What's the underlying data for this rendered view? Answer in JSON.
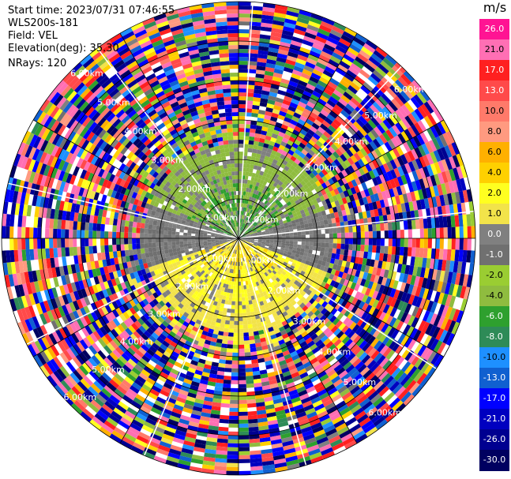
{
  "header": {
    "start_time": "Start time: 2023/07/31 07:46:55",
    "instrument": "WLS200s-181",
    "field": "Field: VEL",
    "elevation": "Elevation(deg): 35.30",
    "nrays": "NRays: 120"
  },
  "colorbar": {
    "unit": "m/s",
    "ticks": [
      "26.0",
      "21.0",
      "17.0",
      "13.0",
      "10.0",
      "8.0",
      "6.0",
      "4.0",
      "2.0",
      "1.0",
      "0.0",
      "-1.0",
      "-2.0",
      "-4.0",
      "-6.0",
      "-8.0",
      "-10.0",
      "-13.0",
      "-17.0",
      "-21.0",
      "-26.0",
      "-30.0"
    ],
    "colors": [
      "#ff1493",
      "#ff6fb4",
      "#ff2020",
      "#ff4a4a",
      "#ff7a6a",
      "#ff9a80",
      "#ffb000",
      "#ffd000",
      "#ffff20",
      "#f2e34a",
      "#808080",
      "#707070",
      "#9acd32",
      "#8fbc3f",
      "#2ea02e",
      "#2e8b57",
      "#1e90ff",
      "#1060d0",
      "#0000ff",
      "#0000c0",
      "#000090",
      "#000060"
    ]
  },
  "chart_data": {
    "type": "ppi",
    "field": "VEL",
    "units": "m/s",
    "nrays": 120,
    "elevation_deg": 35.3,
    "range_rings_km": [
      1.0,
      2.0,
      3.0,
      4.0,
      5.0,
      6.0
    ],
    "ring_labels": [
      "1.00km",
      "2.00km",
      "3.00km",
      "4.00km",
      "5.00km",
      "6.00km"
    ],
    "vmin": -30.0,
    "vmax": 26.0,
    "max_range_km": 6.0,
    "near_field_summary": {
      "north_sector": "green, about -2 to -8 m/s",
      "south_sector": "yellow to orange, about 1 to 8 m/s",
      "east_west": "grey, about 0 m/s"
    },
    "far_field": "noise; random colours across full scale beyond about 2.5 km"
  }
}
